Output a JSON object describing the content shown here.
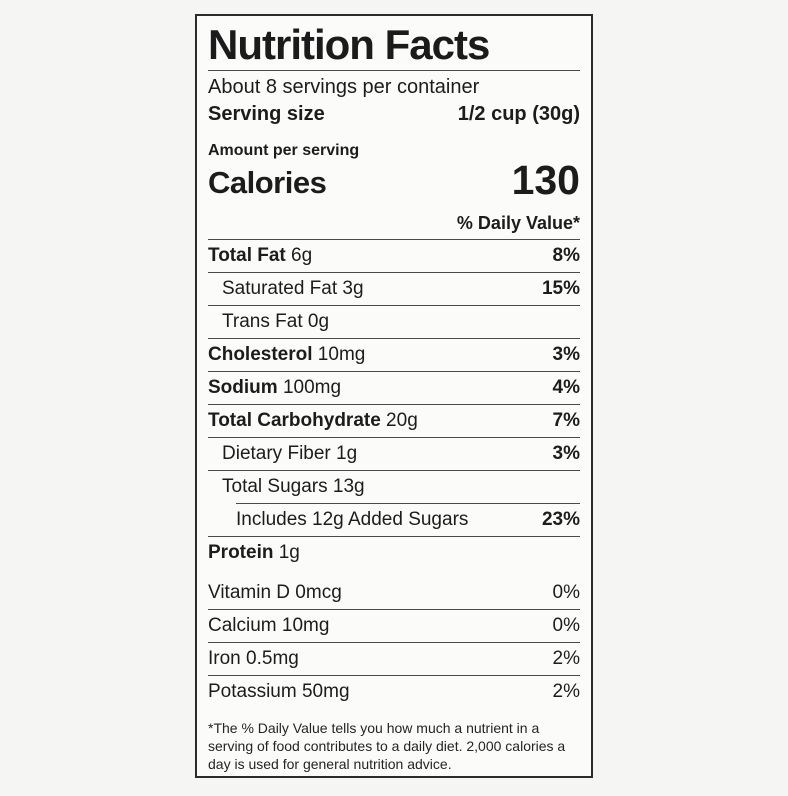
{
  "label": {
    "title": "Nutrition Facts",
    "servings_per_container": "About 8 servings per container",
    "serving_size_label": "Serving size",
    "serving_size_value": "1/2 cup (30g)",
    "amount_per_serving": "Amount per serving",
    "calories_label": "Calories",
    "calories_value": "130",
    "daily_value_header": "% Daily Value*",
    "nutrients": [
      {
        "name": "Total Fat",
        "amount": "6g",
        "dv": "8%",
        "bold": true,
        "indent": 0
      },
      {
        "name": "Saturated Fat",
        "amount": "3g",
        "dv": "15%",
        "bold": false,
        "indent": 1
      },
      {
        "name": "Trans Fat",
        "amount": "0g",
        "dv": "",
        "bold": false,
        "indent": 1
      },
      {
        "name": "Cholesterol",
        "amount": "10mg",
        "dv": "3%",
        "bold": true,
        "indent": 0
      },
      {
        "name": "Sodium",
        "amount": "100mg",
        "dv": "4%",
        "bold": true,
        "indent": 0
      },
      {
        "name": "Total Carbohydrate",
        "amount": "20g",
        "dv": "7%",
        "bold": true,
        "indent": 0
      },
      {
        "name": "Dietary Fiber",
        "amount": "1g",
        "dv": "3%",
        "bold": false,
        "indent": 1
      },
      {
        "name": "Total Sugars",
        "amount": "13g",
        "dv": "",
        "bold": false,
        "indent": 1
      },
      {
        "name": "Includes 12g Added Sugars",
        "amount": "",
        "dv": "23%",
        "bold": false,
        "indent": 2
      },
      {
        "name": "Protein",
        "amount": "1g",
        "dv": "",
        "bold": true,
        "indent": 0
      }
    ],
    "micronutrients": [
      {
        "name": "Vitamin D",
        "amount": "0mcg",
        "dv": "0%"
      },
      {
        "name": "Calcium",
        "amount": "10mg",
        "dv": "0%"
      },
      {
        "name": "Iron",
        "amount": "0.5mg",
        "dv": "2%"
      },
      {
        "name": "Potassium",
        "amount": "50mg",
        "dv": "2%"
      }
    ],
    "footnote": "*The % Daily Value tells you how much a nutrient in a serving of food contributes to a daily diet. 2,000 calories a day is used for general nutrition advice."
  },
  "colors": {
    "background": "#f5f5f4",
    "label_background": "#fbfbfa",
    "text": "#1c1c1c",
    "bar": "#181818",
    "hairline": "#4a4a4a",
    "border": "#2b2b2b"
  }
}
